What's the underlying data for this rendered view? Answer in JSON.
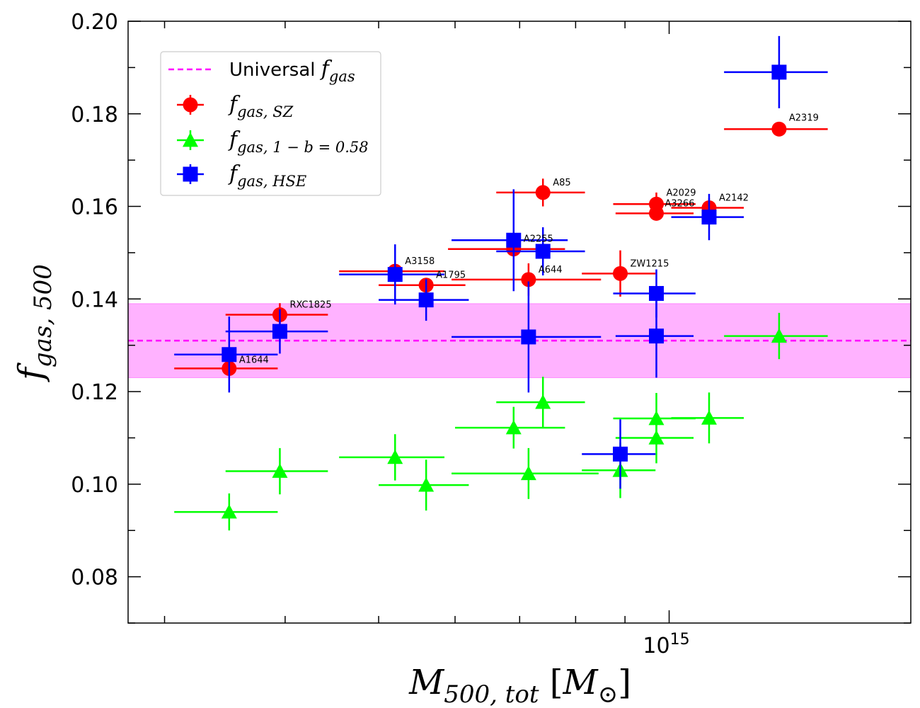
{
  "chart_data": {
    "type": "scatter",
    "title": "",
    "xlabel": "M_500, tot [M_⊙]",
    "ylabel": "f_gas, 500",
    "xscale": "log",
    "xlim": [
      275000000000000.0,
      1780000000000000.0
    ],
    "ylim": [
      0.07,
      0.2
    ],
    "x_tick_labels": [
      {
        "value": 1000000000000000.0,
        "base": "10",
        "exp": "15"
      }
    ],
    "y_ticks": [
      0.08,
      0.1,
      0.12,
      0.14,
      0.16,
      0.18,
      0.2
    ],
    "y_tick_labels": [
      "0.08",
      "0.10",
      "0.12",
      "0.14",
      "0.16",
      "0.18",
      "0.20"
    ],
    "universal": {
      "value": 0.131,
      "band": [
        0.123,
        0.139
      ],
      "color": "#ff00ff",
      "band_color": "#ffaaff"
    },
    "legend": {
      "position": "upper-left",
      "entries": [
        {
          "key": "universal",
          "label_base": "Universal ",
          "label_math": "f",
          "label_sub": "gas"
        },
        {
          "key": "sz",
          "label_math": "f",
          "label_sub": "gas, SZ"
        },
        {
          "key": "hb058",
          "label_math": "f",
          "label_sub": "gas, 1 − b = 0.58"
        },
        {
          "key": "hse",
          "label_math": "f",
          "label_sub": "gas, HSE"
        }
      ]
    },
    "series": [
      {
        "name": "f_gas,SZ",
        "key": "sz",
        "marker": "circle",
        "color": "#ff0000",
        "points": [
          {
            "label": "A1644",
            "x": 350000000000000.0,
            "y": 0.125,
            "xerr": [
              43000000000000.0,
              43000000000000.0
            ],
            "yerr": 0
          },
          {
            "label": "RXC1825",
            "x": 395000000000000.0,
            "y": 0.1366,
            "xerr": [
              48000000000000.0,
              48000000000000.0
            ],
            "yerr": 0.0025
          },
          {
            "label": "A3158",
            "x": 520000000000000.0,
            "y": 0.146,
            "xerr": [
              65000000000000.0,
              65000000000000.0
            ],
            "yerr": 0
          },
          {
            "label": "A1795",
            "x": 560000000000000.0,
            "y": 0.143,
            "xerr": [
              60000000000000.0,
              55000000000000.0
            ],
            "yerr": 0
          },
          {
            "label": "A2255",
            "x": 690000000000000.0,
            "y": 0.1508,
            "xerr": [
              100000000000000.0,
              90000000000000.0
            ],
            "yerr": 0
          },
          {
            "label": "A644",
            "x": 715000000000000.0,
            "y": 0.1442,
            "xerr": [
              120000000000000.0,
              135000000000000.0
            ],
            "yerr": 0.0035
          },
          {
            "label": "A85",
            "x": 740000000000000.0,
            "y": 0.163,
            "xerr": [
              78000000000000.0,
              78000000000000.0
            ],
            "yerr": 0.003
          },
          {
            "label": "ZW1215",
            "x": 890000000000000.0,
            "y": 0.1455,
            "xerr": [
              78000000000000.0,
              78000000000000.0
            ],
            "yerr": 0.005
          },
          {
            "label": "A2029",
            "x": 970000000000000.0,
            "y": 0.1605,
            "xerr": [
              95000000000000.0,
              95000000000000.0
            ],
            "yerr": 0.0025
          },
          {
            "label": "A3266",
            "x": 970000000000000.0,
            "y": 0.1585,
            "xerr": [
              90000000000000.0,
              90000000000000.0
            ],
            "yerr": 0
          },
          {
            "label": "A2142",
            "x": 1100000000000000.0,
            "y": 0.1597,
            "xerr": [
              95000000000000.0,
              95000000000000.0
            ],
            "yerr": 0.002
          },
          {
            "label": "A2319",
            "x": 1300000000000000.0,
            "y": 0.1767,
            "xerr": [
              160000000000000.0,
              160000000000000.0
            ],
            "yerr": 0
          }
        ]
      },
      {
        "name": "f_gas,1-b=0.58",
        "key": "hb058",
        "marker": "triangle",
        "color": "#00ff00",
        "points": [
          {
            "x": 350000000000000.0,
            "y": 0.094,
            "xerr": [
              43000000000000.0,
              43000000000000.0
            ],
            "yerr": 0.004
          },
          {
            "x": 395000000000000.0,
            "y": 0.1028,
            "xerr": [
              48000000000000.0,
              48000000000000.0
            ],
            "yerr": 0.005
          },
          {
            "x": 520000000000000.0,
            "y": 0.1058,
            "xerr": [
              65000000000000.0,
              65000000000000.0
            ],
            "yerr": 0.005
          },
          {
            "x": 560000000000000.0,
            "y": 0.0998,
            "xerr": [
              60000000000000.0,
              60000000000000.0
            ],
            "yerr": 0.0055
          },
          {
            "x": 690000000000000.0,
            "y": 0.1122,
            "xerr": [
              90000000000000.0,
              90000000000000.0
            ],
            "yerr": 0.0045
          },
          {
            "x": 715000000000000.0,
            "y": 0.1023,
            "xerr": [
              120000000000000.0,
              130000000000000.0
            ],
            "yerr": 0.0055
          },
          {
            "x": 740000000000000.0,
            "y": 0.1177,
            "xerr": [
              78000000000000.0,
              78000000000000.0
            ],
            "yerr": 0.0055
          },
          {
            "x": 890000000000000.0,
            "y": 0.103,
            "xerr": [
              78000000000000.0,
              78000000000000.0
            ],
            "yerr": 0.006
          },
          {
            "x": 970000000000000.0,
            "y": 0.1142,
            "xerr": [
              95000000000000.0,
              95000000000000.0
            ],
            "yerr": 0.0055
          },
          {
            "x": 970000000000000.0,
            "y": 0.11,
            "xerr": [
              90000000000000.0,
              90000000000000.0
            ],
            "yerr": 0.0055
          },
          {
            "x": 1100000000000000.0,
            "y": 0.1143,
            "xerr": [
              95000000000000.0,
              95000000000000.0
            ],
            "yerr": 0.0055
          },
          {
            "x": 1300000000000000.0,
            "y": 0.132,
            "xerr": [
              160000000000000.0,
              160000000000000.0
            ],
            "yerr": 0.005
          }
        ]
      },
      {
        "name": "f_gas,HSE",
        "key": "hse",
        "marker": "square",
        "color": "#0000ff",
        "points": [
          {
            "x": 350000000000000.0,
            "y": 0.128,
            "xerr": [
              43000000000000.0,
              43000000000000.0
            ],
            "yerr": 0.0082
          },
          {
            "x": 395000000000000.0,
            "y": 0.133,
            "xerr": [
              48000000000000.0,
              48000000000000.0
            ],
            "yerr": 0.0048
          },
          {
            "x": 520000000000000.0,
            "y": 0.1453,
            "xerr": [
              65000000000000.0,
              65000000000000.0
            ],
            "yerr": 0.0065
          },
          {
            "x": 560000000000000.0,
            "y": 0.1398,
            "xerr": [
              60000000000000.0,
              60000000000000.0
            ],
            "yerr": 0.0045
          },
          {
            "x": 690000000000000.0,
            "y": 0.1527,
            "xerr": [
              95000000000000.0,
              95000000000000.0
            ],
            "yerr": 0.011
          },
          {
            "x": 715000000000000.0,
            "y": 0.1318,
            "xerr": [
              120000000000000.0,
              135000000000000.0
            ],
            "yerr": 0.012
          },
          {
            "x": 740000000000000.0,
            "y": 0.1503,
            "xerr": [
              78000000000000.0,
              78000000000000.0
            ],
            "yerr": 0.0052
          },
          {
            "x": 890000000000000.0,
            "y": 0.1065,
            "xerr": [
              78000000000000.0,
              78000000000000.0
            ],
            "yerr": 0.0075
          },
          {
            "x": 970000000000000.0,
            "y": 0.1412,
            "xerr": [
              95000000000000.0,
              95000000000000.0
            ],
            "yerr": 0.0052
          },
          {
            "x": 970000000000000.0,
            "y": 0.132,
            "xerr": [
              90000000000000.0,
              90000000000000.0
            ],
            "yerr": 0.009
          },
          {
            "x": 1100000000000000.0,
            "y": 0.1577,
            "xerr": [
              95000000000000.0,
              95000000000000.0
            ],
            "yerr": 0.005
          },
          {
            "x": 1300000000000000.0,
            "y": 0.189,
            "xerr": [
              160000000000000.0,
              160000000000000.0
            ],
            "yerr": 0.0078
          }
        ]
      }
    ]
  }
}
